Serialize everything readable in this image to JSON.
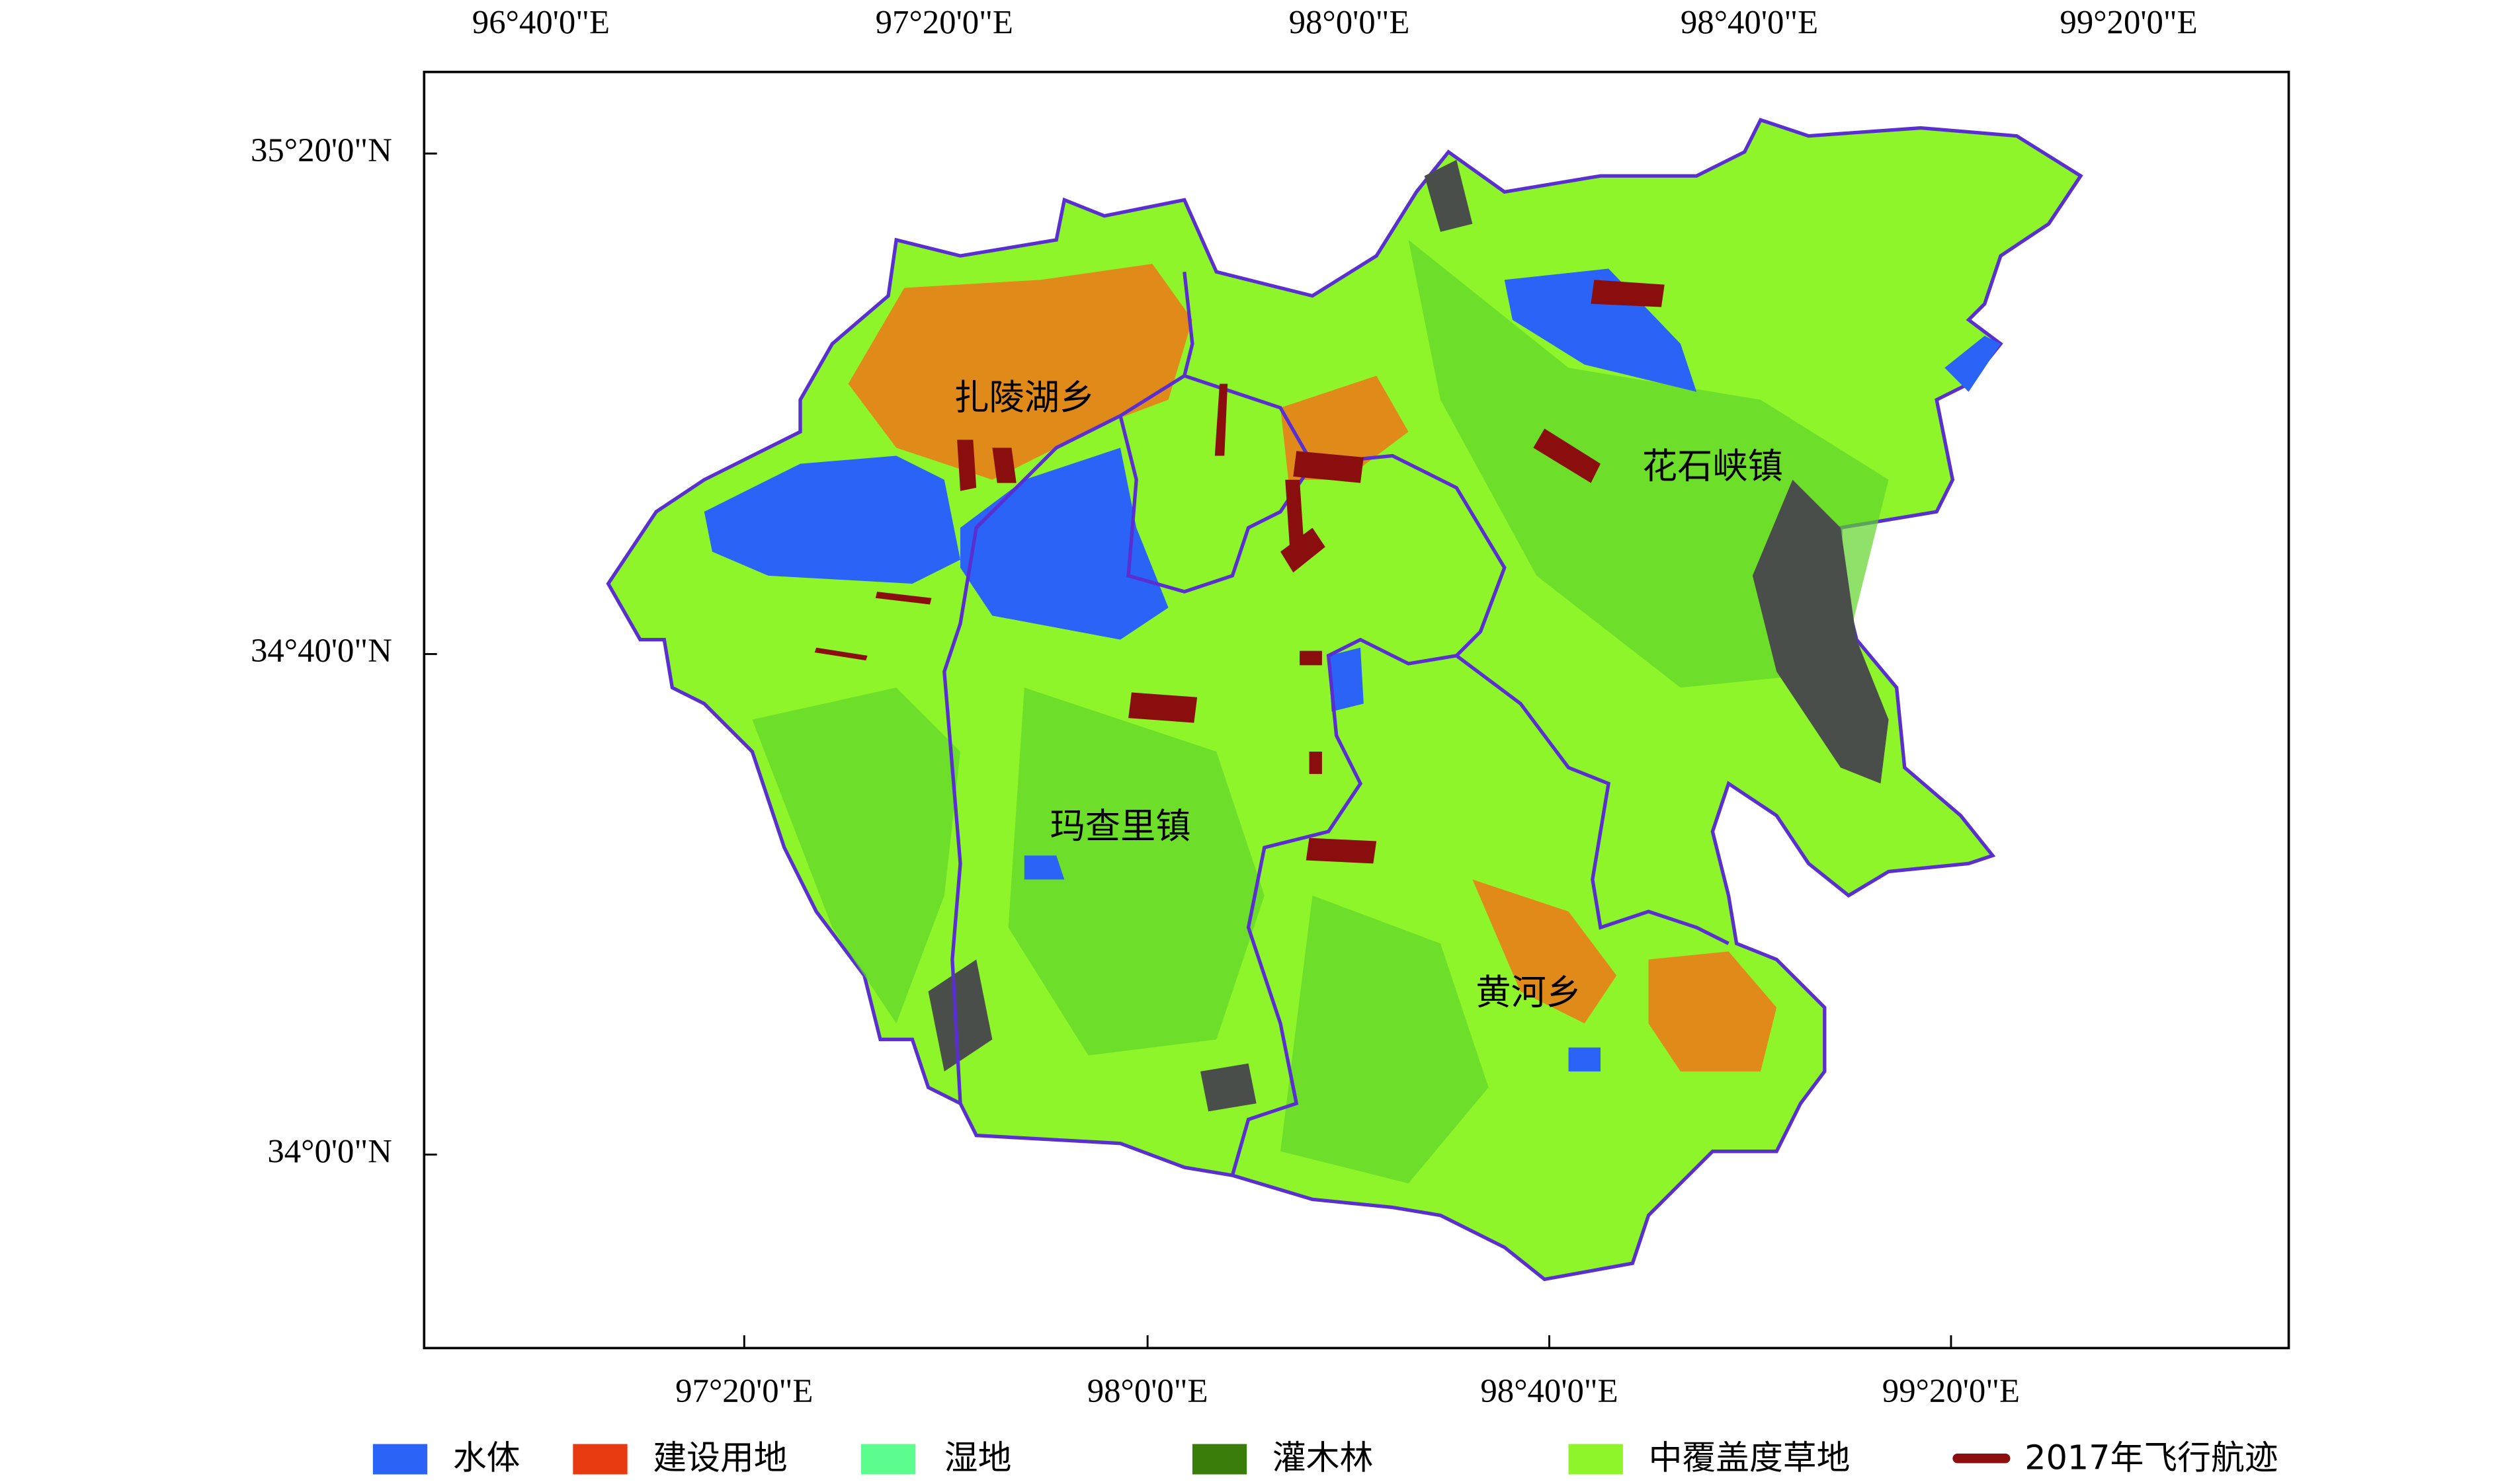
{
  "map": {
    "top_ticks": [
      "96°40'0\"E",
      "97°20'0\"E",
      "98°0'0\"E",
      "98°40'0\"E",
      "99°20'0\"E"
    ],
    "bottom_ticks": [
      "97°20'0\"E",
      "98°0'0\"E",
      "98°40'0\"E",
      "99°20'0\"E"
    ],
    "left_ticks": [
      "35°20'0\"N",
      "34°40'0\"N",
      "34°0'0\"N"
    ],
    "places": [
      "扎陵湖乡",
      "花石峡镇",
      "玛查里镇",
      "黄河乡"
    ],
    "legend": [
      {
        "label": "水体",
        "color": "#2a63f5"
      },
      {
        "label": "建设用地",
        "color": "#e83a10"
      },
      {
        "label": "湿地",
        "color": "#5dfc8e"
      },
      {
        "label": "灌木林",
        "color": "#3a7d0a"
      },
      {
        "label": "中覆盖度草地",
        "color": "#8ef52a"
      },
      {
        "label": "2017年飞行航迹",
        "color": "#8b0e0e"
      }
    ]
  }
}
